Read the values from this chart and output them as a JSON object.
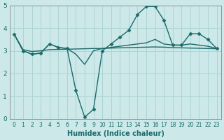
{
  "xlabel": "Humidex (Indice chaleur)",
  "ylabel": "",
  "background_color": "#cce8e8",
  "grid_color": "#aed4d4",
  "line_color": "#1a6b6b",
  "xlim": [
    -0.5,
    23.5
  ],
  "ylim": [
    0,
    5
  ],
  "xticks": [
    0,
    1,
    2,
    3,
    4,
    5,
    6,
    7,
    8,
    9,
    10,
    11,
    12,
    13,
    14,
    15,
    16,
    17,
    18,
    19,
    20,
    21,
    22,
    23
  ],
  "yticks": [
    0,
    1,
    2,
    3,
    4,
    5
  ],
  "series": [
    {
      "x": [
        0,
        1,
        2,
        3,
        4,
        5,
        6,
        7,
        8,
        9,
        10,
        11,
        12,
        13,
        14,
        15,
        16,
        17,
        18,
        19,
        20,
        21,
        22,
        23
      ],
      "y": [
        3.72,
        3.05,
        2.97,
        3.0,
        3.05,
        3.06,
        3.07,
        3.08,
        3.09,
        3.1,
        3.1,
        3.12,
        3.13,
        3.14,
        3.15,
        3.16,
        3.17,
        3.16,
        3.14,
        3.13,
        3.12,
        3.11,
        3.1,
        3.09
      ],
      "marker": null,
      "linewidth": 1.0,
      "linestyle": "-"
    },
    {
      "x": [
        0,
        1,
        2,
        3,
        4,
        5,
        6,
        7,
        8,
        9,
        10,
        11,
        12,
        13,
        14,
        15,
        16,
        17,
        18,
        19,
        20,
        21,
        22,
        23
      ],
      "y": [
        3.72,
        3.0,
        2.85,
        2.9,
        3.3,
        3.15,
        3.1,
        2.85,
        2.4,
        3.0,
        3.1,
        3.15,
        3.2,
        3.25,
        3.3,
        3.35,
        3.5,
        3.3,
        3.25,
        3.25,
        3.3,
        3.25,
        3.2,
        3.1
      ],
      "marker": null,
      "linewidth": 1.0,
      "linestyle": "-"
    },
    {
      "x": [
        0,
        1,
        2,
        3,
        4,
        5,
        6,
        7,
        8,
        9,
        10,
        11,
        12,
        13,
        14,
        15,
        16,
        17,
        18,
        19,
        20,
        21,
        22,
        23
      ],
      "y": [
        3.72,
        3.0,
        2.85,
        2.9,
        3.3,
        3.15,
        3.1,
        1.25,
        0.08,
        0.42,
        3.0,
        3.3,
        3.6,
        3.9,
        4.6,
        4.95,
        4.95,
        4.35,
        3.25,
        3.25,
        3.75,
        3.75,
        3.5,
        3.1
      ],
      "marker": "D",
      "linewidth": 1.0,
      "linestyle": "-"
    }
  ]
}
